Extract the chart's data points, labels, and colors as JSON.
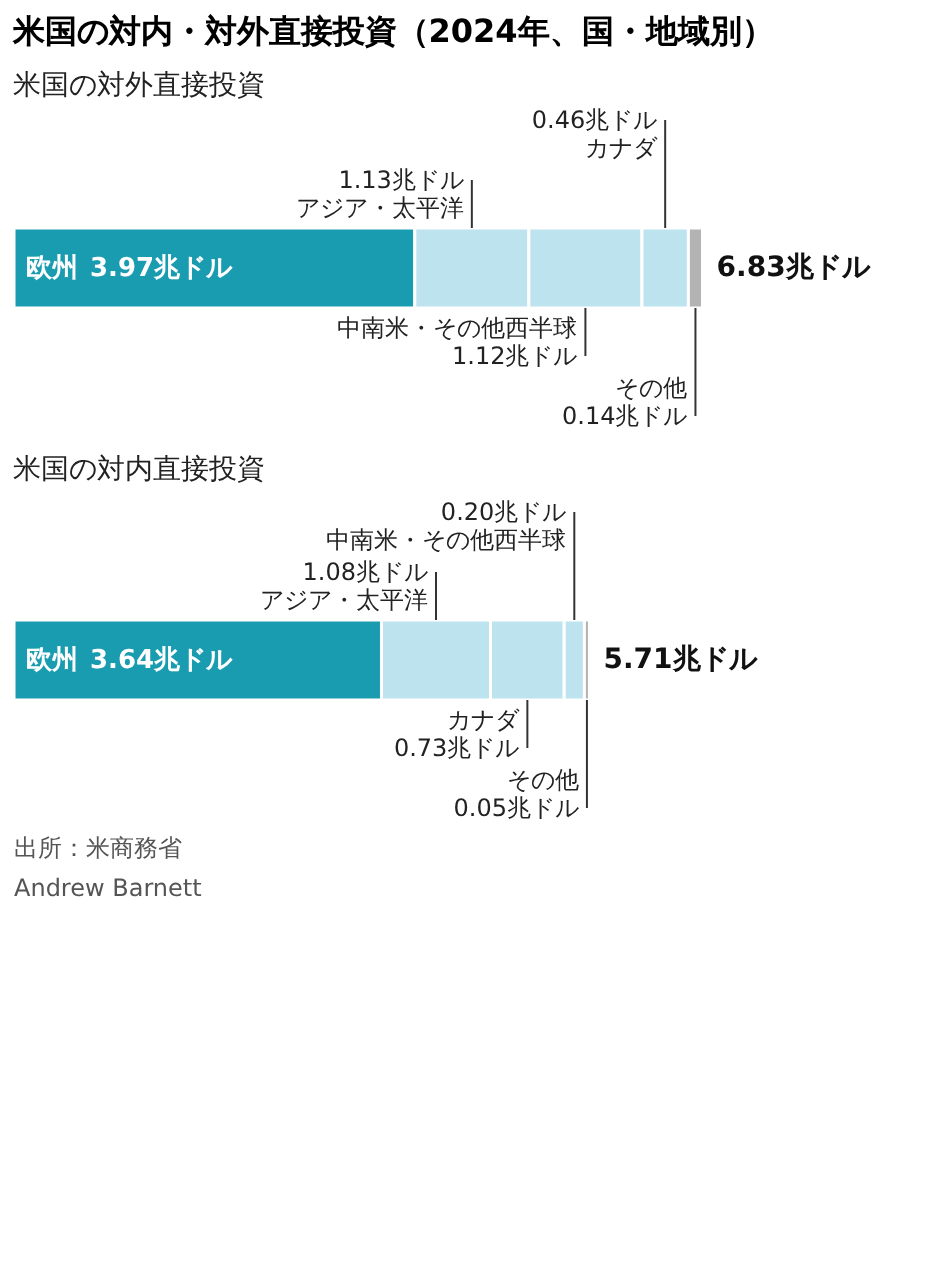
{
  "chart_data": [
    {
      "type": "bar",
      "orientation": "horizontal",
      "stacked": true,
      "title": "米国の対内・対外直接投資（2024年、国・地域別）",
      "subtitle": "米国の対外直接投資",
      "categories": [
        null
      ],
      "series": [
        {
          "name": "欧州",
          "color": "#1a9cb0",
          "values": [
            3.97
          ],
          "value_labels": [
            "3.97兆ドル"
          ]
        },
        {
          "name": "アジア・太平洋",
          "color": "#bde3ee",
          "values": [
            1.13
          ],
          "value_labels": [
            "1.13兆ドル"
          ]
        },
        {
          "name": "中南米・その他西半球",
          "color": "#bde3ee",
          "values": [
            1.12
          ],
          "value_labels": [
            "1.12兆ドル"
          ]
        },
        {
          "name": "カナダ",
          "color": "#bde3ee",
          "values": [
            0.46
          ],
          "value_labels": [
            "0.46兆ドル"
          ]
        },
        {
          "name": "その他",
          "color": "#b3b3b3",
          "values": [
            0.14
          ],
          "value_labels": [
            "0.14兆ドル"
          ]
        }
      ],
      "totals": [
        "6.83兆ドル"
      ]
    },
    {
      "type": "bar",
      "orientation": "horizontal",
      "stacked": true,
      "title": "米国の対内直接投資",
      "categories": [
        null
      ],
      "series": [
        {
          "name": "欧州",
          "color": "#1a9cb0",
          "values": [
            3.64
          ],
          "value_labels": [
            "3.64兆ドル"
          ]
        },
        {
          "name": "アジア・太平洋",
          "color": "#bde3ee",
          "values": [
            1.08
          ],
          "value_labels": [
            "1.08兆ドル"
          ]
        },
        {
          "name": "カナダ",
          "color": "#bde3ee",
          "values": [
            0.73
          ],
          "value_labels": [
            "0.73兆ドル"
          ]
        },
        {
          "name": "中南米・その他西半球",
          "color": "#bde3ee",
          "values": [
            0.2
          ],
          "value_labels": [
            "0.20兆ドル"
          ]
        },
        {
          "name": "その他",
          "color": "#b3b3b3",
          "values": [
            0.05
          ],
          "value_labels": [
            "0.05兆ドル"
          ]
        }
      ],
      "totals": [
        "5.71兆ドル"
      ],
      "annotations": [
        "出所：米商務省",
        "Andrew Barnett"
      ]
    }
  ]
}
